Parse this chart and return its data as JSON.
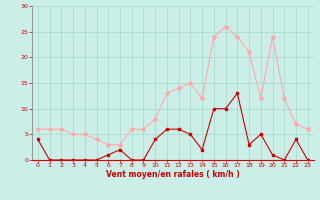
{
  "hours": [
    0,
    1,
    2,
    3,
    4,
    5,
    6,
    7,
    8,
    9,
    10,
    11,
    12,
    13,
    14,
    15,
    16,
    17,
    18,
    19,
    20,
    21,
    22,
    23
  ],
  "avg_wind": [
    4,
    0,
    0,
    0,
    0,
    0,
    1,
    2,
    0,
    0,
    4,
    6,
    6,
    5,
    2,
    10,
    10,
    13,
    3,
    5,
    1,
    0,
    4,
    0
  ],
  "gust_wind": [
    6,
    6,
    6,
    5,
    5,
    4,
    3,
    3,
    6,
    6,
    8,
    13,
    14,
    15,
    12,
    24,
    26,
    24,
    21,
    12,
    24,
    12,
    7,
    6
  ],
  "avg_color": "#cc0000",
  "gust_color": "#ffaaaa",
  "bg_color": "#cceee8",
  "grid_color": "#aaddcc",
  "xlabel": "Vent moyen/en rafales ( km/h )",
  "xlabel_color": "#cc0000",
  "ylim": [
    0,
    30
  ],
  "yticks": [
    0,
    5,
    10,
    15,
    20,
    25,
    30
  ]
}
